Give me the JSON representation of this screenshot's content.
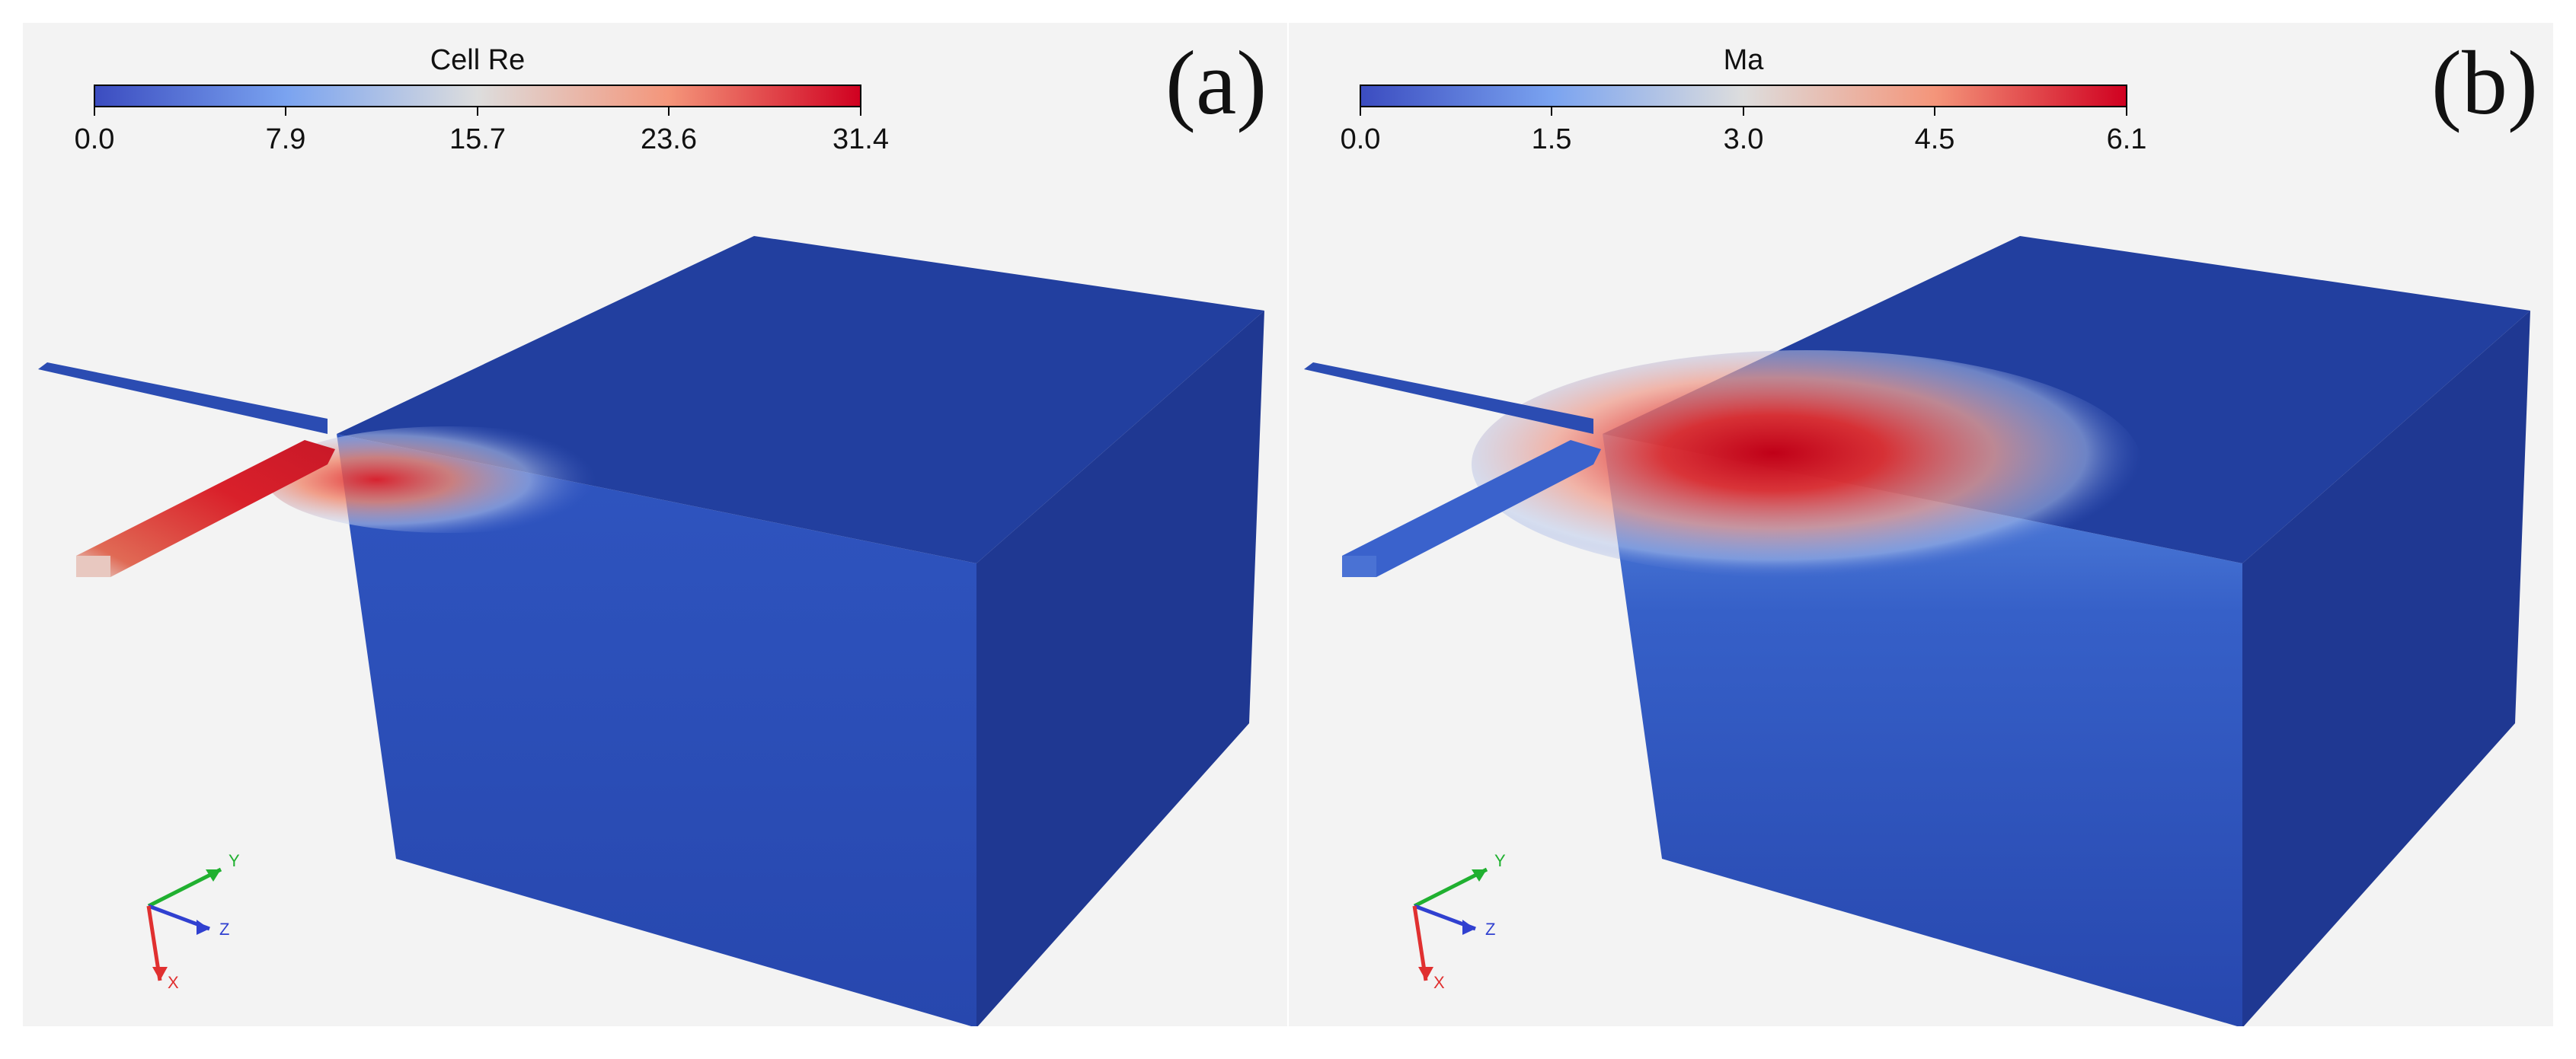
{
  "panels": [
    {
      "label": "(a)",
      "colorbar": {
        "title": "Cell Re",
        "min": 0.0,
        "max": 31.4,
        "ticks": [
          "0.0",
          "7.9",
          "15.7",
          "23.6",
          "31.4"
        ]
      },
      "axes": {
        "x": "X",
        "y": "Y",
        "z": "Z"
      }
    },
    {
      "label": "(b)",
      "colorbar": {
        "title": "Ma",
        "min": 0.0,
        "max": 6.1,
        "ticks": [
          "0.0",
          "1.5",
          "3.0",
          "4.5",
          "6.1"
        ]
      },
      "axes": {
        "x": "X",
        "y": "Y",
        "z": "Z"
      }
    }
  ],
  "colors": {
    "cmap_low": "#3b4cc0",
    "cmap_mid": "#dddddd",
    "cmap_high": "#d00020",
    "box_front": "#2a4bb0",
    "box_side": "#1e3690",
    "box_top": "#213e9e",
    "axis_x": "#e03030",
    "axis_y": "#20b030",
    "axis_z": "#3040d0"
  }
}
